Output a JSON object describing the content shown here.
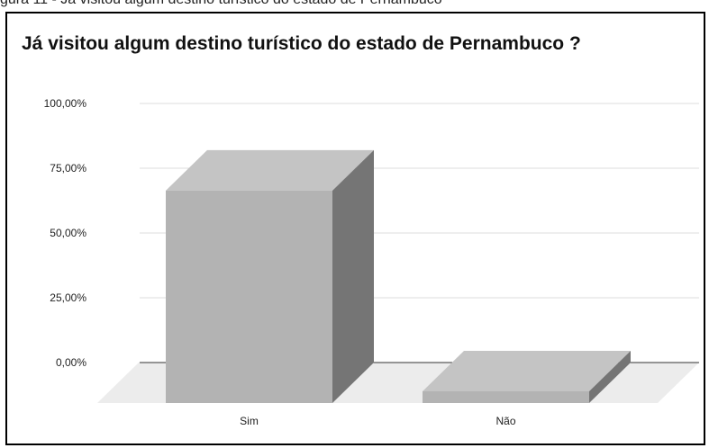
{
  "caption": "gura 11 - Já visitou algum destino turístico do estado de Pernambuco",
  "chart_data": {
    "type": "bar",
    "title": "Já visitou algum destino turístico do estado de Pernambuco ?",
    "categories": [
      "Sim",
      "Não"
    ],
    "values": [
      0.82,
      0.005
    ],
    "ylim": [
      0,
      1
    ],
    "yticks": [
      0,
      0.25,
      0.5,
      0.75,
      1
    ],
    "ytick_labels": [
      "0,00%",
      "25,00%",
      "50,00%",
      "75,00%",
      "100,00%"
    ],
    "grid": true,
    "style": "3d",
    "colors": {
      "front": "#b3b3b3",
      "top": "#c4c4c4",
      "side": "#757575",
      "floor": "#ececec",
      "grid": "#dcdcdc"
    }
  }
}
